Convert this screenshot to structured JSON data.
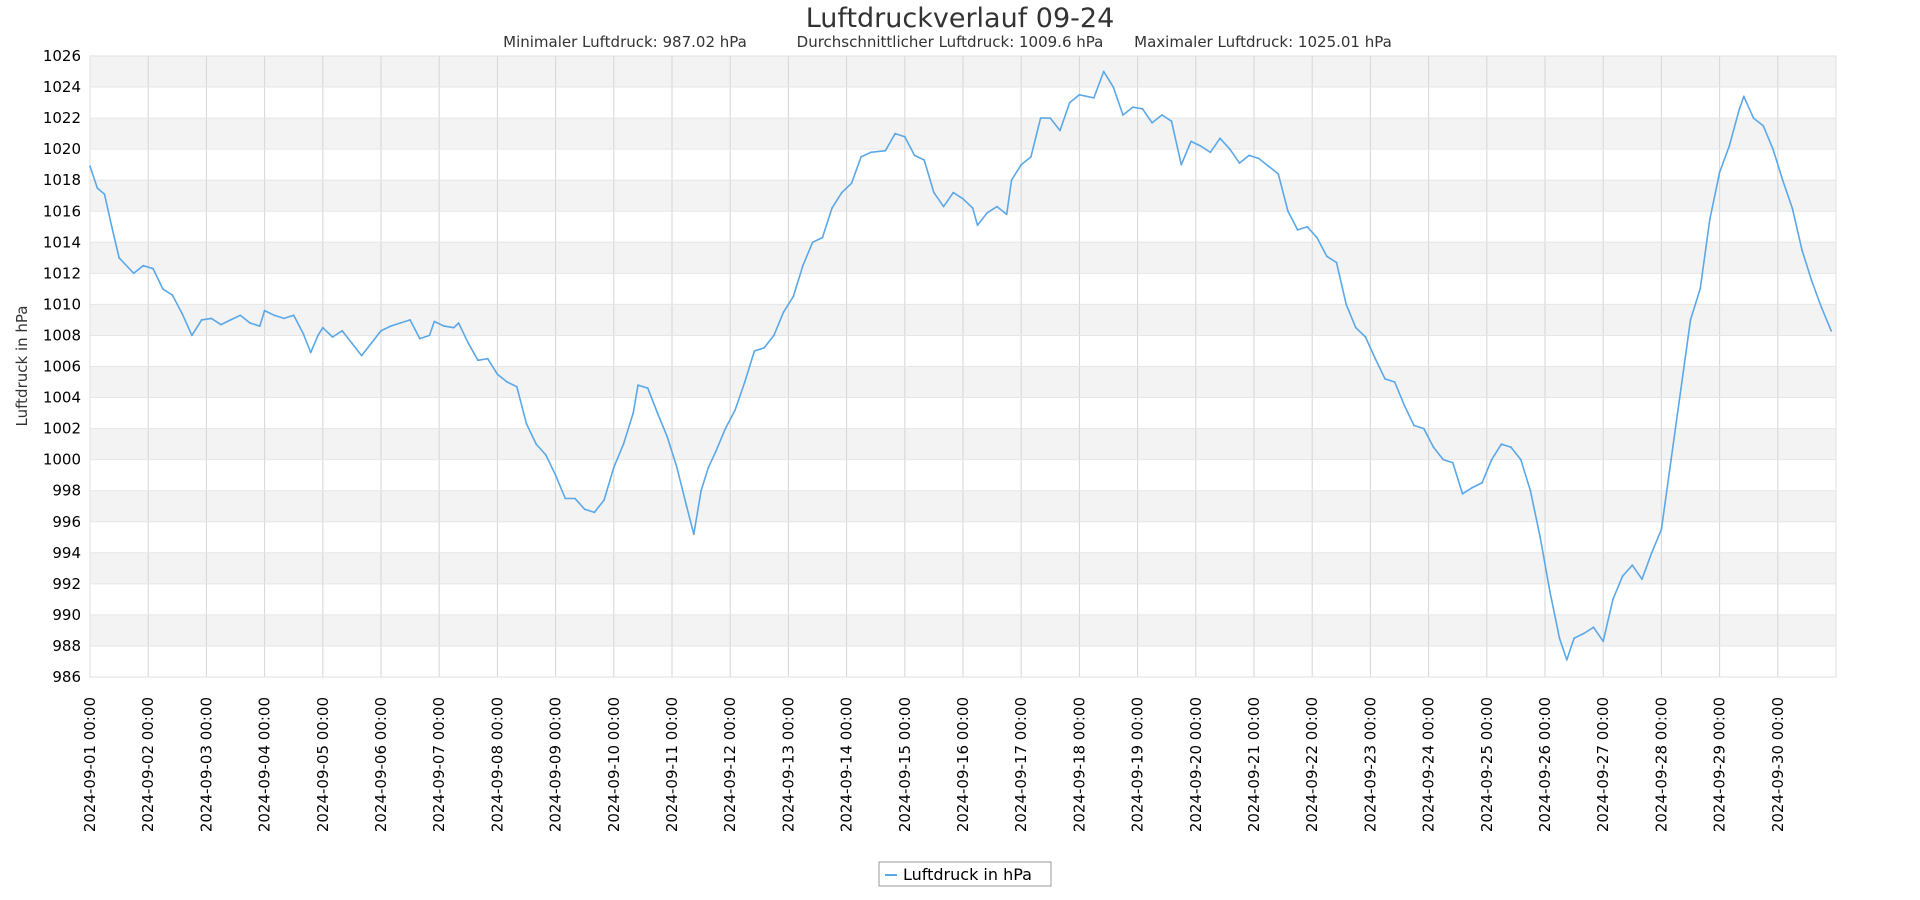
{
  "chart_data": {
    "type": "line",
    "title": "Luftdruckverlauf 09-24",
    "stats": [
      "Minimaler Luftdruck: 987.02 hPa",
      "Durchschnittlicher Luftdruck: 1009.6 hPa",
      "Maximaler Luftdruck: 1025.01 hPa"
    ],
    "ylabel": "Luftdruck in hPa",
    "ylim": [
      986,
      1026
    ],
    "ytick_step": 2,
    "xlim": [
      "2024-09-01 00:00",
      "2024-10-01 00:00"
    ],
    "x_ticks": [
      "2024-09-01 00:00",
      "2024-09-02 00:00",
      "2024-09-03 00:00",
      "2024-09-04 00:00",
      "2024-09-05 00:00",
      "2024-09-06 00:00",
      "2024-09-07 00:00",
      "2024-09-08 00:00",
      "2024-09-09 00:00",
      "2024-09-10 00:00",
      "2024-09-11 00:00",
      "2024-09-12 00:00",
      "2024-09-13 00:00",
      "2024-09-14 00:00",
      "2024-09-15 00:00",
      "2024-09-16 00:00",
      "2024-09-17 00:00",
      "2024-09-18 00:00",
      "2024-09-19 00:00",
      "2024-09-20 00:00",
      "2024-09-21 00:00",
      "2024-09-22 00:00",
      "2024-09-23 00:00",
      "2024-09-24 00:00",
      "2024-09-25 00:00",
      "2024-09-26 00:00",
      "2024-09-27 00:00",
      "2024-09-28 00:00",
      "2024-09-29 00:00",
      "2024-09-30 00:00"
    ],
    "grid": true,
    "legend": "bottom-center",
    "series": [
      {
        "name": "Luftdruck in hPa",
        "color": "#5ba8e8",
        "points": [
          [
            "2024-09-01 00:00",
            1018.9
          ],
          [
            "2024-09-01 03:00",
            1017.5
          ],
          [
            "2024-09-01 06:00",
            1017.1
          ],
          [
            "2024-09-01 09:00",
            1015.0
          ],
          [
            "2024-09-01 12:00",
            1013.0
          ],
          [
            "2024-09-01 18:00",
            1012.0
          ],
          [
            "2024-09-01 22:00",
            1012.5
          ],
          [
            "2024-09-02 02:00",
            1012.3
          ],
          [
            "2024-09-02 06:00",
            1011.0
          ],
          [
            "2024-09-02 10:00",
            1010.6
          ],
          [
            "2024-09-02 14:00",
            1009.4
          ],
          [
            "2024-09-02 18:00",
            1008.0
          ],
          [
            "2024-09-02 22:00",
            1009.0
          ],
          [
            "2024-09-03 02:00",
            1009.1
          ],
          [
            "2024-09-03 06:00",
            1008.7
          ],
          [
            "2024-09-03 10:00",
            1009.0
          ],
          [
            "2024-09-03 14:00",
            1009.3
          ],
          [
            "2024-09-03 18:00",
            1008.8
          ],
          [
            "2024-09-03 22:00",
            1008.6
          ],
          [
            "2024-09-04 00:00",
            1009.6
          ],
          [
            "2024-09-04 04:00",
            1009.3
          ],
          [
            "2024-09-04 08:00",
            1009.1
          ],
          [
            "2024-09-04 12:00",
            1009.3
          ],
          [
            "2024-09-04 16:00",
            1008.1
          ],
          [
            "2024-09-04 19:00",
            1006.9
          ],
          [
            "2024-09-04 22:00",
            1008.0
          ],
          [
            "2024-09-05 00:00",
            1008.5
          ],
          [
            "2024-09-05 04:00",
            1007.9
          ],
          [
            "2024-09-05 08:00",
            1008.3
          ],
          [
            "2024-09-05 12:00",
            1007.5
          ],
          [
            "2024-09-05 16:00",
            1006.7
          ],
          [
            "2024-09-05 20:00",
            1007.5
          ],
          [
            "2024-09-06 00:00",
            1008.3
          ],
          [
            "2024-09-06 04:00",
            1008.6
          ],
          [
            "2024-09-06 08:00",
            1008.8
          ],
          [
            "2024-09-06 12:00",
            1009.0
          ],
          [
            "2024-09-06 16:00",
            1007.8
          ],
          [
            "2024-09-06 20:00",
            1008.0
          ],
          [
            "2024-09-06 22:00",
            1008.9
          ],
          [
            "2024-09-07 02:00",
            1008.6
          ],
          [
            "2024-09-07 06:00",
            1008.5
          ],
          [
            "2024-09-07 08:00",
            1008.8
          ],
          [
            "2024-09-07 12:00",
            1007.5
          ],
          [
            "2024-09-07 16:00",
            1006.4
          ],
          [
            "2024-09-07 20:00",
            1006.5
          ],
          [
            "2024-09-08 00:00",
            1005.5
          ],
          [
            "2024-09-08 04:00",
            1005.0
          ],
          [
            "2024-09-08 08:00",
            1004.7
          ],
          [
            "2024-09-08 12:00",
            1002.3
          ],
          [
            "2024-09-08 16:00",
            1001.0
          ],
          [
            "2024-09-08 20:00",
            1000.3
          ],
          [
            "2024-09-09 00:00",
            999.0
          ],
          [
            "2024-09-09 04:00",
            997.5
          ],
          [
            "2024-09-09 08:00",
            997.5
          ],
          [
            "2024-09-09 12:00",
            996.8
          ],
          [
            "2024-09-09 16:00",
            996.6
          ],
          [
            "2024-09-09 20:00",
            997.4
          ],
          [
            "2024-09-10 00:00",
            999.5
          ],
          [
            "2024-09-10 04:00",
            1001.0
          ],
          [
            "2024-09-10 08:00",
            1003.0
          ],
          [
            "2024-09-10 10:00",
            1004.8
          ],
          [
            "2024-09-10 14:00",
            1004.6
          ],
          [
            "2024-09-10 18:00",
            1003.0
          ],
          [
            "2024-09-10 22:00",
            1001.5
          ],
          [
            "2024-09-11 02:00",
            999.5
          ],
          [
            "2024-09-11 06:00",
            997.0
          ],
          [
            "2024-09-11 09:00",
            995.2
          ],
          [
            "2024-09-11 12:00",
            998.0
          ],
          [
            "2024-09-11 15:00",
            999.5
          ],
          [
            "2024-09-11 18:00",
            1000.5
          ],
          [
            "2024-09-11 22:00",
            1002.0
          ],
          [
            "2024-09-12 02:00",
            1003.2
          ],
          [
            "2024-09-12 06:00",
            1005.0
          ],
          [
            "2024-09-12 10:00",
            1007.0
          ],
          [
            "2024-09-12 14:00",
            1007.2
          ],
          [
            "2024-09-12 18:00",
            1008.0
          ],
          [
            "2024-09-12 22:00",
            1009.5
          ],
          [
            "2024-09-13 02:00",
            1010.5
          ],
          [
            "2024-09-13 06:00",
            1012.5
          ],
          [
            "2024-09-13 10:00",
            1014.0
          ],
          [
            "2024-09-13 14:00",
            1014.3
          ],
          [
            "2024-09-13 18:00",
            1016.2
          ],
          [
            "2024-09-13 22:00",
            1017.2
          ],
          [
            "2024-09-14 02:00",
            1017.8
          ],
          [
            "2024-09-14 06:00",
            1019.5
          ],
          [
            "2024-09-14 10:00",
            1019.8
          ],
          [
            "2024-09-14 16:00",
            1019.9
          ],
          [
            "2024-09-14 20:00",
            1021.0
          ],
          [
            "2024-09-15 00:00",
            1020.8
          ],
          [
            "2024-09-15 04:00",
            1019.6
          ],
          [
            "2024-09-15 08:00",
            1019.3
          ],
          [
            "2024-09-15 12:00",
            1017.2
          ],
          [
            "2024-09-15 16:00",
            1016.3
          ],
          [
            "2024-09-15 20:00",
            1017.2
          ],
          [
            "2024-09-16 00:00",
            1016.8
          ],
          [
            "2024-09-16 04:00",
            1016.2
          ],
          [
            "2024-09-16 06:00",
            1015.1
          ],
          [
            "2024-09-16 10:00",
            1015.9
          ],
          [
            "2024-09-16 14:00",
            1016.3
          ],
          [
            "2024-09-16 18:00",
            1015.8
          ],
          [
            "2024-09-16 20:00",
            1018.0
          ],
          [
            "2024-09-17 00:00",
            1019.0
          ],
          [
            "2024-09-17 04:00",
            1019.5
          ],
          [
            "2024-09-17 08:00",
            1022.0
          ],
          [
            "2024-09-17 12:00",
            1022.0
          ],
          [
            "2024-09-17 16:00",
            1021.2
          ],
          [
            "2024-09-17 20:00",
            1023.0
          ],
          [
            "2024-09-18 00:00",
            1023.5
          ],
          [
            "2024-09-18 06:00",
            1023.3
          ],
          [
            "2024-09-18 10:00",
            1025.0
          ],
          [
            "2024-09-18 14:00",
            1024.0
          ],
          [
            "2024-09-18 18:00",
            1022.2
          ],
          [
            "2024-09-18 22:00",
            1022.7
          ],
          [
            "2024-09-19 02:00",
            1022.6
          ],
          [
            "2024-09-19 06:00",
            1021.7
          ],
          [
            "2024-09-19 10:00",
            1022.2
          ],
          [
            "2024-09-19 14:00",
            1021.8
          ],
          [
            "2024-09-19 18:00",
            1019.0
          ],
          [
            "2024-09-19 22:00",
            1020.5
          ],
          [
            "2024-09-20 02:00",
            1020.2
          ],
          [
            "2024-09-20 06:00",
            1019.8
          ],
          [
            "2024-09-20 10:00",
            1020.7
          ],
          [
            "2024-09-20 14:00",
            1020.0
          ],
          [
            "2024-09-20 18:00",
            1019.1
          ],
          [
            "2024-09-20 22:00",
            1019.6
          ],
          [
            "2024-09-21 02:00",
            1019.4
          ],
          [
            "2024-09-21 06:00",
            1018.9
          ],
          [
            "2024-09-21 10:00",
            1018.4
          ],
          [
            "2024-09-21 14:00",
            1016.0
          ],
          [
            "2024-09-21 18:00",
            1014.8
          ],
          [
            "2024-09-21 22:00",
            1015.0
          ],
          [
            "2024-09-22 02:00",
            1014.3
          ],
          [
            "2024-09-22 06:00",
            1013.1
          ],
          [
            "2024-09-22 10:00",
            1012.7
          ],
          [
            "2024-09-22 14:00",
            1010.0
          ],
          [
            "2024-09-22 18:00",
            1008.5
          ],
          [
            "2024-09-22 22:00",
            1007.9
          ],
          [
            "2024-09-23 02:00",
            1006.5
          ],
          [
            "2024-09-23 06:00",
            1005.2
          ],
          [
            "2024-09-23 10:00",
            1005.0
          ],
          [
            "2024-09-23 14:00",
            1003.5
          ],
          [
            "2024-09-23 18:00",
            1002.2
          ],
          [
            "2024-09-23 22:00",
            1002.0
          ],
          [
            "2024-09-24 02:00",
            1000.8
          ],
          [
            "2024-09-24 06:00",
            1000.0
          ],
          [
            "2024-09-24 10:00",
            999.8
          ],
          [
            "2024-09-24 14:00",
            997.8
          ],
          [
            "2024-09-24 18:00",
            998.2
          ],
          [
            "2024-09-24 22:00",
            998.5
          ],
          [
            "2024-09-25 02:00",
            1000.0
          ],
          [
            "2024-09-25 06:00",
            1001.0
          ],
          [
            "2024-09-25 10:00",
            1000.8
          ],
          [
            "2024-09-25 14:00",
            1000.0
          ],
          [
            "2024-09-25 18:00",
            998.0
          ],
          [
            "2024-09-25 22:00",
            995.0
          ],
          [
            "2024-09-26 02:00",
            991.5
          ],
          [
            "2024-09-26 06:00",
            988.5
          ],
          [
            "2024-09-26 09:00",
            987.1
          ],
          [
            "2024-09-26 12:00",
            988.5
          ],
          [
            "2024-09-26 16:00",
            988.8
          ],
          [
            "2024-09-26 20:00",
            989.2
          ],
          [
            "2024-09-27 00:00",
            988.3
          ],
          [
            "2024-09-27 04:00",
            991.0
          ],
          [
            "2024-09-27 08:00",
            992.5
          ],
          [
            "2024-09-27 12:00",
            993.2
          ],
          [
            "2024-09-27 16:00",
            992.3
          ],
          [
            "2024-09-27 20:00",
            994.0
          ],
          [
            "2024-09-28 00:00",
            995.5
          ],
          [
            "2024-09-28 04:00",
            1000.0
          ],
          [
            "2024-09-28 08:00",
            1004.5
          ],
          [
            "2024-09-28 12:00",
            1009.0
          ],
          [
            "2024-09-28 16:00",
            1011.0
          ],
          [
            "2024-09-28 20:00",
            1015.5
          ],
          [
            "2024-09-29 00:00",
            1018.5
          ],
          [
            "2024-09-29 04:00",
            1020.2
          ],
          [
            "2024-09-29 08:00",
            1022.5
          ],
          [
            "2024-09-29 10:00",
            1023.4
          ],
          [
            "2024-09-29 14:00",
            1022.0
          ],
          [
            "2024-09-29 18:00",
            1021.5
          ],
          [
            "2024-09-29 22:00",
            1020.0
          ],
          [
            "2024-09-30 02:00",
            1018.0
          ],
          [
            "2024-09-30 06:00",
            1016.2
          ],
          [
            "2024-09-30 10:00",
            1013.5
          ],
          [
            "2024-09-30 14:00",
            1011.5
          ],
          [
            "2024-09-30 18:00",
            1009.8
          ],
          [
            "2024-09-30 22:00",
            1008.3
          ]
        ]
      }
    ]
  }
}
